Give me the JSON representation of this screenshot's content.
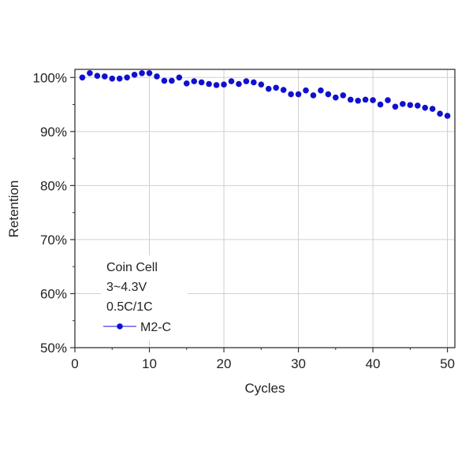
{
  "chart_data": {
    "type": "scatter",
    "title": "",
    "xlabel": "Cycles",
    "ylabel": "Retention",
    "xlim": [
      0,
      51
    ],
    "ylim": [
      50,
      101.5
    ],
    "x_ticks": [
      0,
      10,
      20,
      30,
      40,
      50
    ],
    "y_ticks": [
      50,
      60,
      70,
      80,
      90,
      100
    ],
    "x_tick_labels": [
      "0",
      "10",
      "20",
      "30",
      "40",
      "50"
    ],
    "y_tick_labels": [
      "50%",
      "60%",
      "70%",
      "80%",
      "90%",
      "100%"
    ],
    "grid": true,
    "legend_position": "bottom-left",
    "annotations": [
      "Coin Cell",
      "3~4.3V",
      "0.5C/1C"
    ],
    "series": [
      {
        "name": "M2-C",
        "color": "#1010d0",
        "marker": "circle",
        "x": [
          1,
          2,
          3,
          4,
          5,
          6,
          7,
          8,
          9,
          10,
          11,
          12,
          13,
          14,
          15,
          16,
          17,
          18,
          19,
          20,
          21,
          22,
          23,
          24,
          25,
          26,
          27,
          28,
          29,
          30,
          31,
          32,
          33,
          34,
          35,
          36,
          37,
          38,
          39,
          40,
          41,
          42,
          43,
          44,
          45,
          46,
          47,
          48,
          49,
          50
        ],
        "y": [
          100.0,
          100.8,
          100.3,
          100.2,
          99.8,
          99.8,
          100.0,
          100.5,
          100.8,
          100.8,
          100.2,
          99.4,
          99.4,
          100.0,
          98.9,
          99.3,
          99.1,
          98.8,
          98.6,
          98.7,
          99.3,
          98.8,
          99.3,
          99.1,
          98.7,
          97.9,
          98.1,
          97.7,
          96.9,
          96.9,
          97.6,
          96.7,
          97.6,
          96.9,
          96.3,
          96.7,
          95.9,
          95.7,
          95.9,
          95.8,
          95.0,
          95.8,
          94.6,
          95.1,
          94.9,
          94.8,
          94.4,
          94.2,
          93.3,
          92.9
        ]
      }
    ]
  }
}
